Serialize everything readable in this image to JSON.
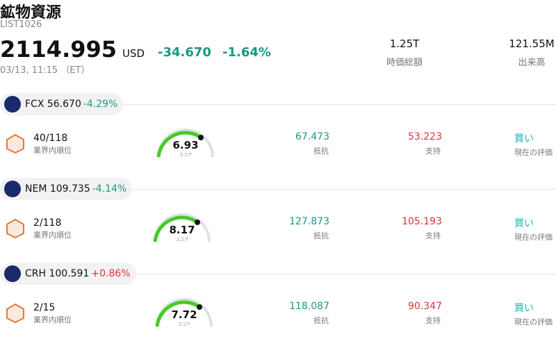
{
  "header": {
    "title": "鉱物資源",
    "code": "LIST1026",
    "price": "2114.995",
    "currency": "USD",
    "change": "-34.670",
    "change_pct": "-1.64%",
    "time": "03/13, 11:15 （ET）",
    "stats": [
      {
        "value": "1.25T",
        "label": "時価総額"
      },
      {
        "value": "121.55M",
        "label": "出来高"
      }
    ]
  },
  "stocks": [
    {
      "ticker": "FCX 56.670",
      "change": "-4.29%",
      "rank": "40/118",
      "rank_label": "業界内順位",
      "score": "6.93",
      "score_label": "スコア",
      "resistance": "67.473",
      "resistance_label": "抵抗",
      "support": "53.223",
      "support_label": "支持",
      "rating": "買い",
      "rating_label": "現在の評価"
    },
    {
      "ticker": "NEM 109.735",
      "change": "-4.14%",
      "rank": "2/118",
      "rank_label": "業界内順位",
      "score": "8.17",
      "score_label": "スコア",
      "resistance": "127.873",
      "resistance_label": "抵抗",
      "support": "105.193",
      "support_label": "支持",
      "rating": "買い",
      "rating_label": "現在の評価"
    },
    {
      "ticker": "CRH 100.591",
      "change": "+0.86%",
      "rank": "2/15",
      "rank_label": "業界内順位",
      "score": "7.72",
      "score_label": "スコア",
      "resistance": "118.087",
      "resistance_label": "抵抗",
      "support": "90.347",
      "support_label": "支持",
      "rating": "買い",
      "rating_label": "現在の評価"
    }
  ]
}
